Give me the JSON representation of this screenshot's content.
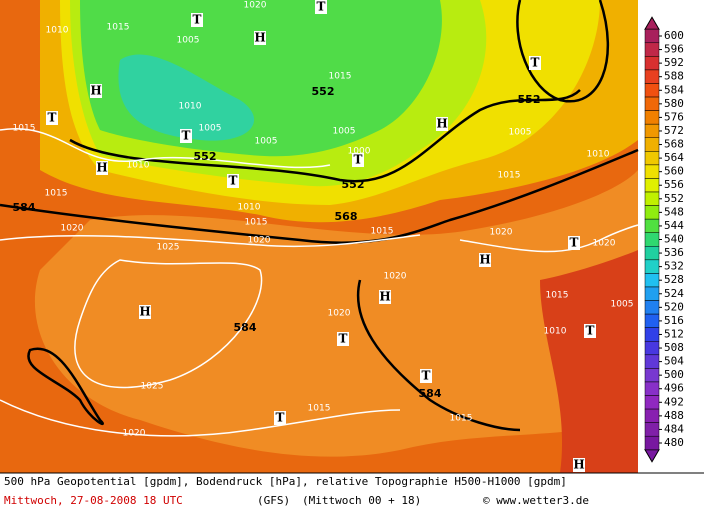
{
  "map_labels": [
    "1015",
    "T",
    "1020",
    "T",
    "1010",
    "1005",
    "H",
    "1015",
    "552",
    "H",
    "1010",
    "1005",
    "T",
    "1005",
    "1015",
    "T",
    "1005",
    "1000",
    "T",
    "H",
    "552",
    "T",
    "1005",
    "1010",
    "552",
    "1010",
    "H",
    "T",
    "552",
    "1015",
    "1015",
    "584",
    "1010",
    "568",
    "1015",
    "1020",
    "1020",
    "1015",
    "1020",
    "T",
    "1020",
    "1025",
    "H",
    "1020",
    "1015",
    "H",
    "H",
    "1020",
    "584",
    "1005",
    "1010",
    "T",
    "T",
    "T",
    "1025",
    "584",
    "T",
    "1015",
    "1020",
    "1015",
    "H"
  ],
  "colorbar": {
    "ticks": [
      600,
      596,
      592,
      588,
      584,
      580,
      576,
      572,
      568,
      564,
      560,
      556,
      552,
      548,
      544,
      540,
      536,
      532,
      528,
      524,
      520,
      516,
      512,
      508,
      504,
      500,
      496,
      492,
      488,
      484,
      480
    ],
    "colors": [
      "#a8205c",
      "#c02848",
      "#d83030",
      "#e84020",
      "#f05010",
      "#f06808",
      "#f08000",
      "#f09800",
      "#f0b000",
      "#f0c800",
      "#f0e000",
      "#e0f000",
      "#c0f000",
      "#90ec10",
      "#50e040",
      "#30d870",
      "#20d0a0",
      "#20d0c8",
      "#20c0f0",
      "#20a0f0",
      "#2080f0",
      "#2060f0",
      "#3040e8",
      "#4838e0",
      "#6038d8",
      "#7838d0",
      "#8830c8",
      "#9028c0",
      "#8820b0",
      "#8020a8",
      "#7818a0"
    ]
  },
  "footer": {
    "line1": "500 hPa Geopotential [gpdm], Bodendruck [hPa], relative Topographie H500-H1000 [gpdm]",
    "date": "Mittwoch, 27-08-2008  18 UTC",
    "model": "(GFS)",
    "run": "(Mittwoch 00 + 18)",
    "site": "© www.wetter3.de"
  }
}
